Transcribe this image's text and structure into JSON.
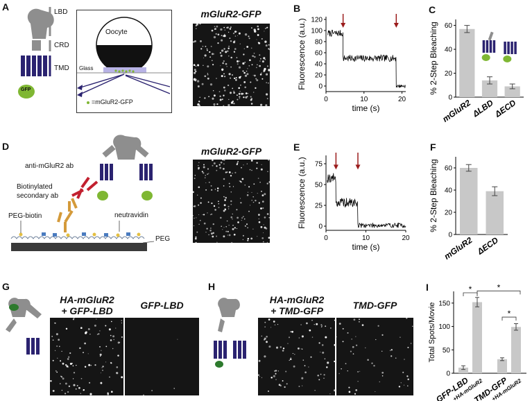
{
  "panels": {
    "A": {
      "label": "A",
      "domains": [
        "LBD",
        "CRD",
        "TMD"
      ],
      "gfp_tag": "GFP",
      "oocyte_label": "Oocyte",
      "glass_label": "Glass",
      "legend": "=mGluR2-GFP",
      "image_title": "mGluR2-GFP"
    },
    "B": {
      "label": "B",
      "ylabel": "Fluorescence (a.u.)",
      "xlabel": "time (s)",
      "yticks": [
        "0",
        "20",
        "40",
        "60",
        "80",
        "100",
        "120"
      ],
      "xticks": [
        "0",
        "10",
        "20"
      ]
    },
    "C": {
      "label": "C",
      "ylabel": "% 2-Step Bleaching",
      "yticks": [
        "0",
        "20",
        "40",
        "60"
      ],
      "categories": [
        "mGluR2",
        "ΔLBD",
        "ΔECD"
      ]
    },
    "D": {
      "label": "D",
      "labels": [
        "anti-mGluR2 ab",
        "Biotinylated secondary ab",
        "PEG-biotin",
        "neutravidin",
        "PEG"
      ],
      "image_title": "mGluR2-GFP"
    },
    "E": {
      "label": "E",
      "ylabel": "Fluorescence (a.u.)",
      "xlabel": "time (s)",
      "yticks": [
        "0",
        "25",
        "50",
        "75"
      ],
      "xticks": [
        "0",
        "10",
        "20"
      ]
    },
    "F": {
      "label": "F",
      "ylabel": "% 2-Step Bleaching",
      "yticks": [
        "0",
        "20",
        "40",
        "60"
      ],
      "categories": [
        "mGluR2",
        "ΔECD"
      ]
    },
    "G": {
      "label": "G",
      "image_titles": [
        "HA-mGluR2\n+ GFP-LBD",
        "GFP-LBD"
      ]
    },
    "H": {
      "label": "H",
      "image_titles": [
        "HA-mGluR2\n+ TMD-GFP",
        "TMD-GFP"
      ]
    },
    "I": {
      "label": "I",
      "ylabel": "Total Spots/Movie",
      "yticks": [
        "0",
        "50",
        "100",
        "150"
      ],
      "groups": [
        "GFP-LBD",
        "TMD-GFP"
      ],
      "sublabels": [
        "+HA-mGluR2",
        "+HA-mGluR2"
      ],
      "sig": "*"
    }
  },
  "chart_data": [
    {
      "panel": "B",
      "type": "line",
      "xlabel": "time (s)",
      "ylabel": "Fluorescence (a.u.)",
      "xlim": [
        0,
        21
      ],
      "ylim": [
        -10,
        125
      ],
      "bleach_steps_at": [
        4.5,
        18.5
      ],
      "levels": [
        {
          "from": 0.5,
          "to": 4.5,
          "level": 95
        },
        {
          "from": 4.5,
          "to": 18.5,
          "level": 50
        },
        {
          "from": 18.5,
          "to": 21,
          "level": 0
        }
      ]
    },
    {
      "panel": "C",
      "type": "bar",
      "ylabel": "% 2-Step Bleaching",
      "categories": [
        "mGluR2",
        "ΔLBD",
        "ΔECD"
      ],
      "values": [
        57,
        14,
        9
      ],
      "errors": [
        3,
        3,
        2
      ],
      "ylim": [
        0,
        65
      ]
    },
    {
      "panel": "E",
      "type": "line",
      "xlabel": "time (s)",
      "ylabel": "Fluorescence (a.u.)",
      "xlim": [
        0,
        20
      ],
      "ylim": [
        -5,
        85
      ],
      "bleach_steps_at": [
        2.5,
        8
      ],
      "levels": [
        {
          "from": 0.3,
          "to": 2.5,
          "level": 58
        },
        {
          "from": 2.5,
          "to": 8,
          "level": 28
        },
        {
          "from": 8,
          "to": 20,
          "level": 1
        }
      ]
    },
    {
      "panel": "F",
      "type": "bar",
      "ylabel": "% 2-Step Bleaching",
      "categories": [
        "mGluR2",
        "ΔECD"
      ],
      "values": [
        60,
        39
      ],
      "errors": [
        3,
        4
      ],
      "ylim": [
        0,
        70
      ]
    },
    {
      "panel": "I",
      "type": "bar",
      "ylabel": "Total Spots/Movie",
      "categories": [
        "GFP-LBD",
        "+HA-mGluR2",
        "TMD-GFP",
        "+HA-mGluR2"
      ],
      "values": [
        12,
        152,
        30,
        99
      ],
      "errors": [
        4,
        10,
        3,
        7
      ],
      "ylim": [
        0,
        175
      ]
    }
  ],
  "colors": {
    "bar": "#c8c8c8",
    "receptor_lbd": "#8e8e8e",
    "receptor_tmd": "#2b2370",
    "gfp": "#7fb733",
    "arrow": "#9b1c1c",
    "antibody_primary": "#c2202f",
    "antibody_secondary": "#d49a3a",
    "micrograph_bg": "#151515"
  }
}
